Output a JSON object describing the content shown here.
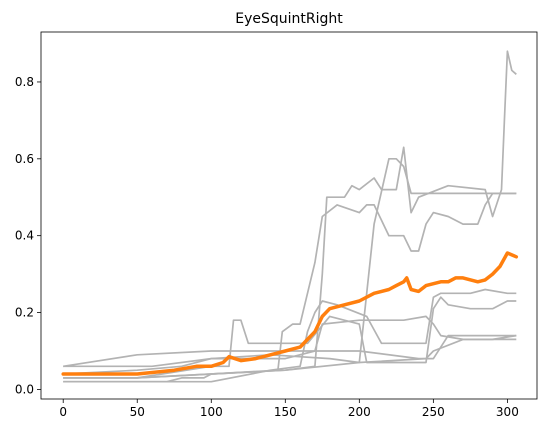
{
  "chart_data": {
    "type": "line",
    "title": "EyeSquintRight",
    "xlabel": "",
    "ylabel": "",
    "xlim": [
      -15,
      320
    ],
    "ylim": [
      -0.025,
      0.93
    ],
    "xticks": [
      0,
      50,
      100,
      150,
      200,
      250,
      300
    ],
    "yticks": [
      0.0,
      0.2,
      0.4,
      0.6,
      0.8
    ],
    "ytick_labels": [
      "0.0",
      "0.2",
      "0.4",
      "0.6",
      "0.8"
    ],
    "grid": false,
    "colors": {
      "background": "#ffffff",
      "gray_series": "#b3b3b3",
      "highlight_series": "#ff7f0e"
    },
    "gray_series": [
      {
        "x": [
          0,
          40,
          70,
          80,
          95,
          100,
          150,
          170,
          175,
          178,
          190,
          195,
          200,
          210,
          215,
          225,
          230,
          235,
          240,
          260,
          285,
          290,
          296,
          298,
          300,
          303,
          306
        ],
        "y": [
          0.02,
          0.02,
          0.02,
          0.03,
          0.03,
          0.04,
          0.05,
          0.06,
          0.3,
          0.5,
          0.5,
          0.53,
          0.52,
          0.55,
          0.52,
          0.52,
          0.63,
          0.46,
          0.5,
          0.53,
          0.52,
          0.45,
          0.52,
          0.7,
          0.88,
          0.83,
          0.82
        ]
      },
      {
        "x": [
          0,
          30,
          60,
          100,
          140,
          180,
          200,
          210,
          220,
          225,
          230,
          235,
          300,
          306
        ],
        "y": [
          0.06,
          0.06,
          0.06,
          0.08,
          0.09,
          0.08,
          0.07,
          0.43,
          0.6,
          0.6,
          0.58,
          0.51,
          0.51,
          0.51
        ]
      },
      {
        "x": [
          0,
          50,
          100,
          145,
          148,
          155,
          160,
          170,
          175,
          185,
          200,
          205,
          210,
          220,
          230,
          235,
          240,
          245,
          250,
          260,
          270,
          280,
          285,
          290,
          300,
          306
        ],
        "y": [
          0.03,
          0.03,
          0.04,
          0.05,
          0.15,
          0.17,
          0.17,
          0.33,
          0.45,
          0.48,
          0.46,
          0.48,
          0.48,
          0.4,
          0.4,
          0.36,
          0.36,
          0.43,
          0.46,
          0.45,
          0.43,
          0.43,
          0.48,
          0.51,
          0.51,
          0.51
        ]
      },
      {
        "x": [
          0,
          50,
          100,
          140,
          160,
          165,
          170,
          175,
          185,
          205,
          215,
          230,
          245,
          250,
          255,
          275,
          285,
          300,
          306
        ],
        "y": [
          0.02,
          0.02,
          0.02,
          0.05,
          0.06,
          0.15,
          0.2,
          0.23,
          0.22,
          0.19,
          0.12,
          0.12,
          0.12,
          0.24,
          0.25,
          0.25,
          0.26,
          0.25,
          0.25
        ]
      },
      {
        "x": [
          0,
          50,
          100,
          112,
          115,
          120,
          125,
          150,
          165,
          180,
          200,
          205,
          245,
          250,
          255,
          260,
          275,
          290,
          300,
          306
        ],
        "y": [
          0.03,
          0.03,
          0.06,
          0.06,
          0.18,
          0.18,
          0.12,
          0.12,
          0.12,
          0.19,
          0.17,
          0.07,
          0.07,
          0.21,
          0.24,
          0.22,
          0.21,
          0.21,
          0.23,
          0.23
        ]
      },
      {
        "x": [
          0,
          50,
          80,
          100,
          150,
          170,
          175,
          200,
          230,
          245,
          250,
          255,
          270,
          290,
          306
        ],
        "y": [
          0.04,
          0.05,
          0.06,
          0.08,
          0.08,
          0.1,
          0.17,
          0.18,
          0.18,
          0.19,
          0.17,
          0.14,
          0.13,
          0.13,
          0.14
        ]
      },
      {
        "x": [
          0,
          50,
          100,
          150,
          200,
          240,
          250,
          260,
          275,
          300,
          306
        ],
        "y": [
          0.06,
          0.09,
          0.1,
          0.1,
          0.1,
          0.08,
          0.08,
          0.14,
          0.14,
          0.14,
          0.14
        ]
      },
      {
        "x": [
          0,
          50,
          100,
          150,
          200,
          245,
          250,
          270,
          300,
          306
        ],
        "y": [
          0.03,
          0.03,
          0.04,
          0.05,
          0.07,
          0.08,
          0.1,
          0.13,
          0.13,
          0.13
        ]
      }
    ],
    "highlight_series": {
      "x": [
        0,
        20,
        50,
        75,
        90,
        100,
        108,
        112,
        120,
        130,
        140,
        150,
        160,
        165,
        170,
        175,
        180,
        190,
        200,
        210,
        220,
        225,
        230,
        232,
        235,
        240,
        245,
        250,
        255,
        260,
        265,
        270,
        280,
        285,
        290,
        295,
        300,
        303,
        306
      ],
      "y": [
        0.04,
        0.04,
        0.04,
        0.05,
        0.06,
        0.06,
        0.07,
        0.085,
        0.075,
        0.08,
        0.09,
        0.1,
        0.11,
        0.13,
        0.15,
        0.19,
        0.21,
        0.22,
        0.23,
        0.25,
        0.26,
        0.27,
        0.28,
        0.29,
        0.26,
        0.255,
        0.27,
        0.275,
        0.28,
        0.28,
        0.29,
        0.29,
        0.28,
        0.285,
        0.3,
        0.32,
        0.355,
        0.35,
        0.345
      ]
    }
  }
}
